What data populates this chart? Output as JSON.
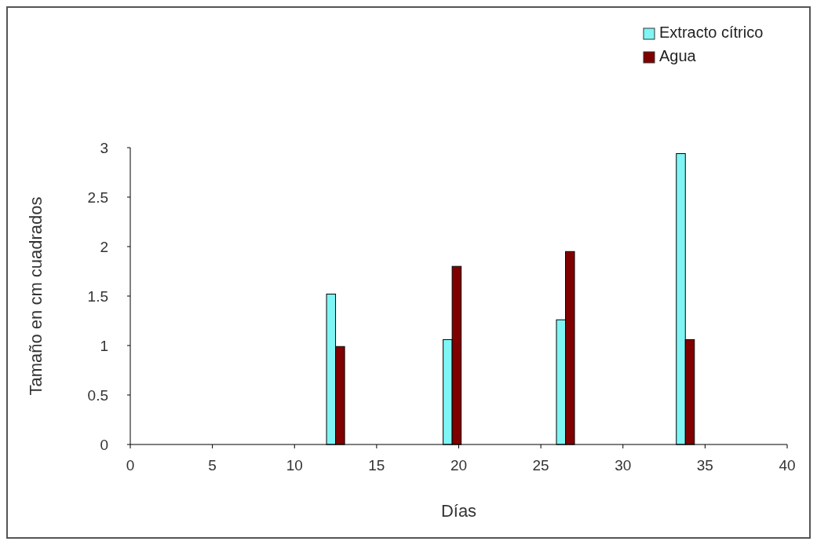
{
  "chart_data": {
    "type": "bar",
    "xlabel": "Días",
    "ylabel": "Tamaño en cm cuadrados",
    "x": [
      12.5,
      19.6,
      26.5,
      33.8
    ],
    "series": [
      {
        "name": "Extracto cítrico",
        "color": "#7ff5f5",
        "values": [
          1.52,
          1.06,
          1.26,
          2.94
        ]
      },
      {
        "name": "Agua",
        "color": "#800000",
        "values": [
          0.99,
          1.8,
          1.95,
          1.06
        ]
      }
    ],
    "xlim": [
      0,
      40
    ],
    "xticks": [
      0,
      5,
      10,
      15,
      20,
      25,
      30,
      35,
      40
    ],
    "ylim": [
      0,
      3
    ],
    "yticks": [
      0,
      0.5,
      1,
      1.5,
      2,
      2.5,
      3
    ],
    "grid": false,
    "legend": "top right"
  }
}
